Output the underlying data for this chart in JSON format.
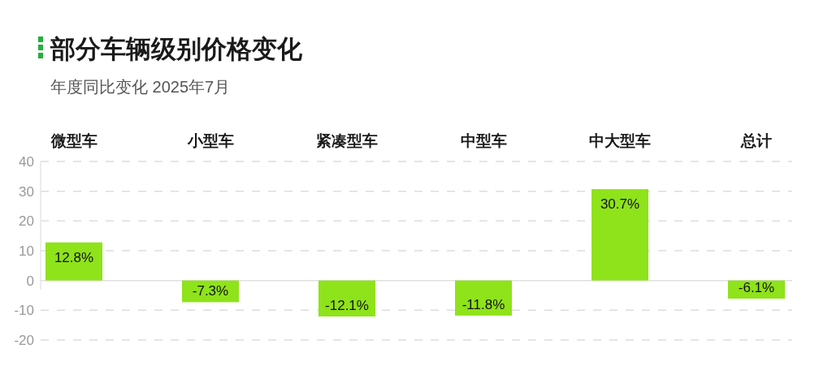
{
  "chart_data": {
    "type": "bar",
    "title": "部分车辆级别价格变化",
    "subtitle": "年度同比变化 2025年7月",
    "categories": [
      "微型车",
      "小型车",
      "紧凑型车",
      "中型车",
      "中大型车",
      "总计"
    ],
    "values": [
      12.8,
      -7.3,
      -12.1,
      -11.8,
      30.7,
      -6.1
    ],
    "value_labels": [
      "12.8%",
      "-7.3%",
      "-12.1%",
      "-11.8%",
      "30.7%",
      "-6.1%"
    ],
    "color": "#8fe31a",
    "ylim": [
      -20,
      40
    ],
    "yticks": [
      -20,
      -10,
      0,
      10,
      20,
      30,
      40
    ],
    "grid": "y"
  }
}
